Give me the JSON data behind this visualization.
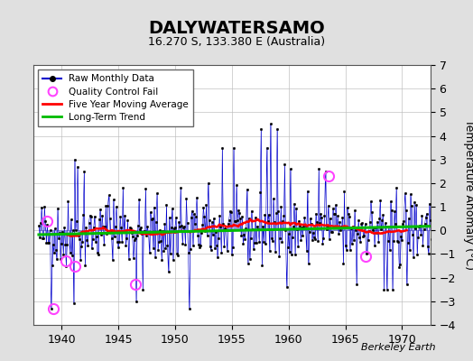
{
  "title": "DALYWATERSAMO",
  "subtitle": "16.270 S, 133.380 E (Australia)",
  "ylabel": "Temperature Anomaly (°C)",
  "watermark": "Berkeley Earth",
  "xlim": [
    1937.5,
    1972.5
  ],
  "ylim": [
    -4,
    7
  ],
  "yticks": [
    -4,
    -3,
    -2,
    -1,
    0,
    1,
    2,
    3,
    4,
    5,
    6,
    7
  ],
  "xticks": [
    1940,
    1945,
    1950,
    1955,
    1960,
    1965,
    1970
  ],
  "bg_color": "#e0e0e0",
  "plot_bg_color": "#ffffff",
  "raw_color": "#0000cc",
  "moving_avg_color": "#ff0000",
  "trend_color": "#00bb00",
  "qc_fail_color": "#ff44ff",
  "title_fontsize": 14,
  "subtitle_fontsize": 9,
  "seed": 42,
  "qc_fail_times": [
    1938.75,
    1939.25,
    1940.42,
    1941.17,
    1946.5,
    1963.5,
    1966.75
  ],
  "qc_fail_vals": [
    0.4,
    -3.3,
    -1.3,
    -1.5,
    -2.3,
    2.3,
    -1.1
  ]
}
